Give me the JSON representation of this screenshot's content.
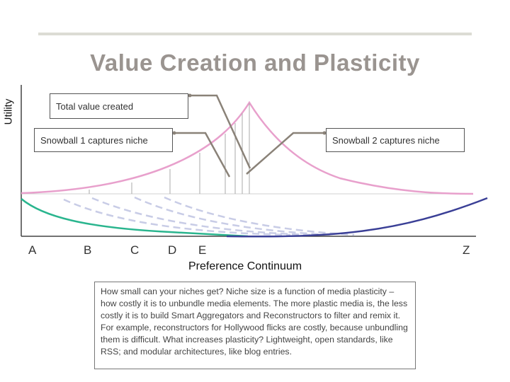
{
  "diagram": {
    "title": "Value Creation and Plasticity",
    "y_axis_label": "Utility",
    "x_axis_label": "Preference Continuum",
    "x_tick_labels": [
      "A",
      "B",
      "C",
      "D",
      "E",
      "Z"
    ],
    "callouts": {
      "total_value": "Total value created",
      "snowball_1": "Snowball 1 captures niche",
      "snowball_2": "Snowball 2 captures niche"
    },
    "note": "How small can your niches get? Niche size is a function of media plasticity – how costly it is to unbundle media elements. The more plastic media is, the less costly it is to build Smart Aggregators and Reconstructors to filter and remix it. For example, reconstructors for Hollywood flicks are costly, because unbundling them is difficult. What increases plasticity? Lightweight, open standards, like RSS; and modular architectures, like blog entries.",
    "colors": {
      "total_value_curve": "#e8a0cc",
      "snowball_1_curve": "#2ab58e",
      "snowball_2_curve": "#3a3f96",
      "intermediate_curves": "#c8cce6",
      "leader_lines": "#8a8278",
      "title": "#9a9490"
    }
  }
}
